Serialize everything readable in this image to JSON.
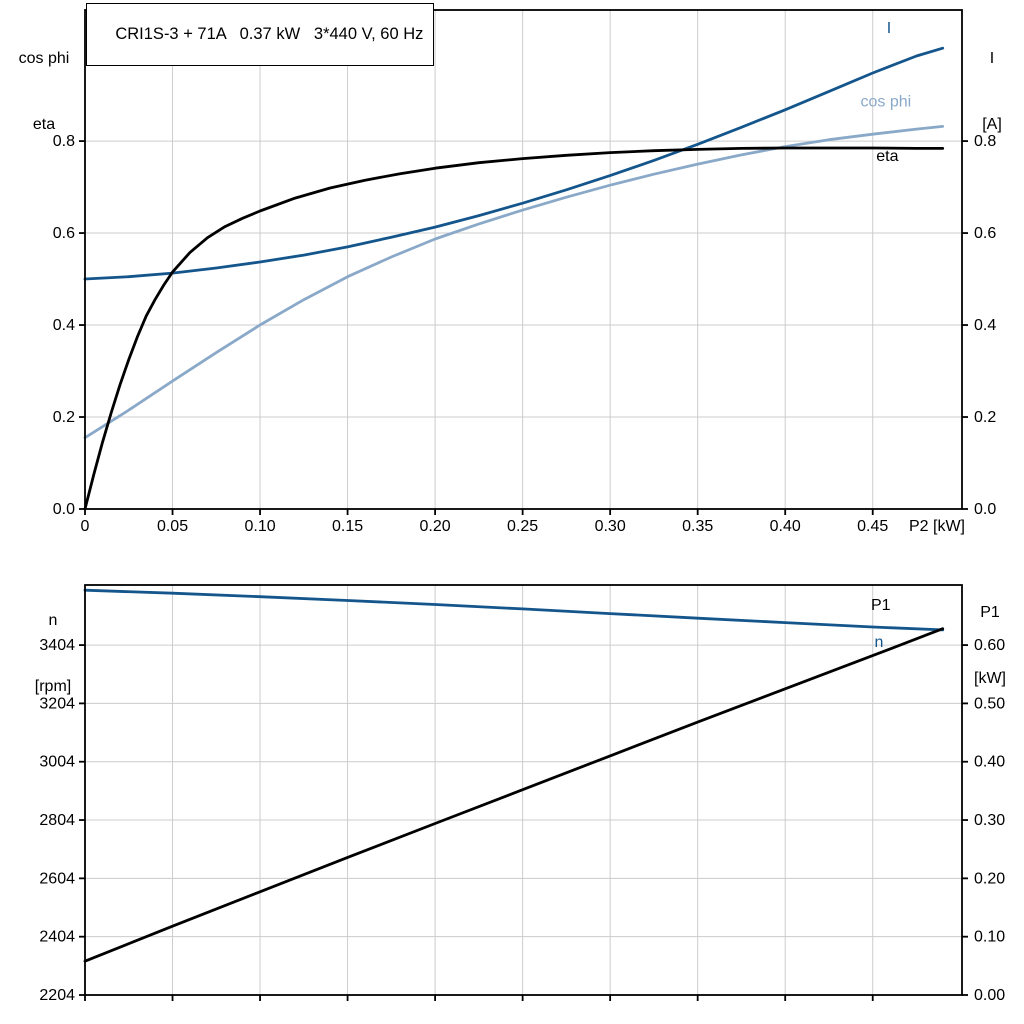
{
  "title": "CRI1S-3 + 71A   0.37 kW   3*440 V, 60 Hz",
  "axis_corner_labels": {
    "top_left": [
      "cos phi",
      "eta"
    ],
    "top_right": [
      "I",
      "[A]"
    ],
    "bottom_left": [
      "n",
      "[rpm]"
    ],
    "bottom_right": [
      "P1",
      "[kW]"
    ]
  },
  "colors": {
    "dark_blue": "#14568c",
    "light_blue": "#8aa9c9",
    "black": "#000000",
    "grid": "#cccccc",
    "axis": "#000000"
  },
  "chart_data": [
    {
      "id": "top",
      "type": "line",
      "title": "CRI1S-3 + 71A   0.37 kW   3*440 V, 60 Hz",
      "xlabel": "P2 [kW]",
      "xlim": [
        0,
        0.501
      ],
      "xticks": [
        0,
        0.05,
        0.1,
        0.15,
        0.2,
        0.25,
        0.3,
        0.35,
        0.4,
        0.45
      ],
      "xtick_labels": [
        "0",
        "0.05",
        "0.10",
        "0.15",
        "0.20",
        "0.25",
        "0.30",
        "0.35",
        "0.40",
        "0.45"
      ],
      "left_axis": {
        "name": "cos phi / eta",
        "lim": [
          0,
          1.085
        ],
        "ticks": [
          0,
          0.2,
          0.4,
          0.6,
          0.8
        ],
        "tick_labels": [
          "0.0",
          "0.2",
          "0.4",
          "0.6",
          "0.8"
        ]
      },
      "right_axis": {
        "name": "I [A]",
        "lim": [
          0,
          1.085
        ],
        "ticks": [
          0,
          0.2,
          0.4,
          0.6,
          0.8
        ],
        "tick_labels": [
          "0.0",
          "0.2",
          "0.4",
          "0.6",
          "0.8"
        ]
      },
      "series": [
        {
          "name": "I",
          "label": "I",
          "color": "dark_blue",
          "axis": "left",
          "label_x": 0.458,
          "label_y": 1.035,
          "x": [
            0,
            0.025,
            0.05,
            0.075,
            0.1,
            0.125,
            0.15,
            0.175,
            0.2,
            0.225,
            0.25,
            0.275,
            0.3,
            0.325,
            0.35,
            0.375,
            0.4,
            0.425,
            0.45,
            0.475,
            0.49
          ],
          "y": [
            0.5,
            0.505,
            0.513,
            0.524,
            0.537,
            0.552,
            0.57,
            0.591,
            0.613,
            0.638,
            0.665,
            0.694,
            0.725,
            0.758,
            0.793,
            0.83,
            0.868,
            0.908,
            0.948,
            0.985,
            1.002
          ]
        },
        {
          "name": "cos phi",
          "label": "cos phi",
          "color": "light_blue",
          "axis": "left",
          "label_x": 0.443,
          "label_y": 0.875,
          "x": [
            0,
            0.025,
            0.05,
            0.075,
            0.1,
            0.125,
            0.15,
            0.175,
            0.2,
            0.225,
            0.25,
            0.275,
            0.3,
            0.325,
            0.35,
            0.375,
            0.4,
            0.425,
            0.45,
            0.475,
            0.49
          ],
          "y": [
            0.155,
            0.215,
            0.278,
            0.34,
            0.4,
            0.455,
            0.505,
            0.548,
            0.587,
            0.62,
            0.65,
            0.678,
            0.704,
            0.728,
            0.75,
            0.77,
            0.788,
            0.803,
            0.815,
            0.826,
            0.832
          ]
        },
        {
          "name": "eta",
          "label": "eta",
          "color": "black",
          "axis": "left",
          "label_x": 0.452,
          "label_y": 0.757,
          "x": [
            0,
            0.005,
            0.01,
            0.015,
            0.02,
            0.025,
            0.03,
            0.035,
            0.04,
            0.045,
            0.05,
            0.06,
            0.07,
            0.08,
            0.09,
            0.1,
            0.12,
            0.14,
            0.16,
            0.18,
            0.2,
            0.225,
            0.25,
            0.275,
            0.3,
            0.325,
            0.35,
            0.375,
            0.4,
            0.425,
            0.45,
            0.475,
            0.49
          ],
          "y": [
            0,
            0.075,
            0.145,
            0.21,
            0.27,
            0.325,
            0.375,
            0.42,
            0.455,
            0.487,
            0.515,
            0.558,
            0.59,
            0.614,
            0.632,
            0.648,
            0.676,
            0.698,
            0.715,
            0.729,
            0.741,
            0.753,
            0.762,
            0.769,
            0.775,
            0.779,
            0.782,
            0.784,
            0.785,
            0.785,
            0.785,
            0.784,
            0.784
          ]
        }
      ]
    },
    {
      "id": "bottom",
      "type": "line",
      "title": "",
      "xlabel": "",
      "xlim": [
        0,
        0.501
      ],
      "xticks": [
        0,
        0.05,
        0.1,
        0.15,
        0.2,
        0.25,
        0.3,
        0.35,
        0.4,
        0.45
      ],
      "xtick_labels": [],
      "left_axis": {
        "name": "n [rpm]",
        "lim": [
          2204,
          3610
        ],
        "ticks": [
          2204,
          2404,
          2604,
          2804,
          3004,
          3204,
          3404
        ],
        "tick_labels": [
          "2204",
          "2404",
          "2604",
          "2804",
          "3004",
          "3204",
          "3404"
        ]
      },
      "right_axis": {
        "name": "P1 [kW]",
        "lim": [
          0,
          0.703
        ],
        "ticks": [
          0,
          0.1,
          0.2,
          0.3,
          0.4,
          0.5,
          0.6
        ],
        "tick_labels": [
          "0.00",
          "0.10",
          "0.20",
          "0.30",
          "0.40",
          "0.50",
          "0.60"
        ]
      },
      "series": [
        {
          "name": "n",
          "label": "n",
          "color": "dark_blue",
          "axis": "left",
          "label_x": 0.451,
          "label_y": 3398,
          "x": [
            0,
            0.05,
            0.1,
            0.15,
            0.2,
            0.25,
            0.3,
            0.35,
            0.4,
            0.45,
            0.49
          ],
          "y": [
            3592,
            3582,
            3570,
            3557,
            3543,
            3528,
            3512,
            3496,
            3481,
            3466,
            3456
          ]
        },
        {
          "name": "P1",
          "label": "P1",
          "color": "black",
          "axis": "right",
          "label_x": 0.449,
          "label_y": 0.66,
          "x": [
            0,
            0.05,
            0.1,
            0.15,
            0.2,
            0.25,
            0.3,
            0.35,
            0.4,
            0.45,
            0.49
          ],
          "y": [
            0.058,
            0.118,
            0.177,
            0.236,
            0.294,
            0.352,
            0.41,
            0.468,
            0.525,
            0.582,
            0.628
          ]
        }
      ]
    }
  ]
}
